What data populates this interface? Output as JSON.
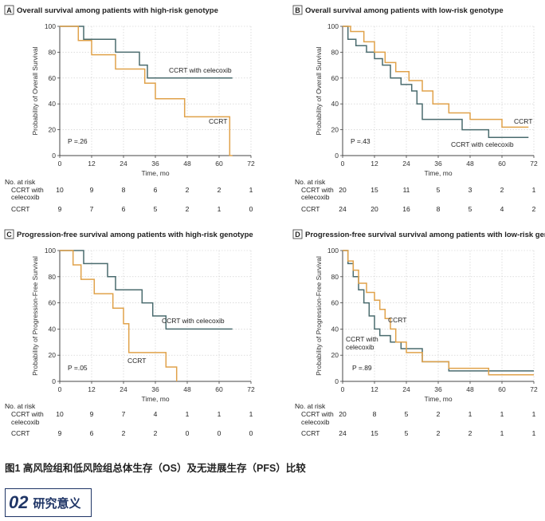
{
  "figure_caption": "图1 高风险组和低风险组总体生存（OS）及无进展生存（PFS）比较",
  "section": {
    "number": "02",
    "title": "研究意义"
  },
  "colors": {
    "celecoxib": "#4a6b6e",
    "ccrt": "#e0a24a",
    "axis": "#444444",
    "grid": "#c8c8c8"
  },
  "chart_data": [
    {
      "type": "line",
      "panel": "A",
      "title": "Overall survival among patients with high-risk genotype",
      "xlabel": "Time, mo",
      "ylabel": "Probability of Overall Survival",
      "xlim": [
        0,
        72
      ],
      "ylim": [
        0,
        100
      ],
      "xticks": [
        0,
        12,
        24,
        36,
        48,
        60,
        72
      ],
      "yticks": [
        0,
        20,
        40,
        60,
        80,
        100
      ],
      "p_value": "P =.26",
      "series": [
        {
          "name": "CCRT with celecoxib",
          "label": "CCRT with celecoxib",
          "color": "#4a6b6e",
          "x": [
            0,
            9,
            9,
            21,
            21,
            30,
            30,
            33,
            33,
            37,
            37,
            65
          ],
          "y": [
            100,
            100,
            90,
            90,
            80,
            80,
            70,
            70,
            60,
            60,
            60,
            60
          ]
        },
        {
          "name": "CCRT",
          "label": "CCRT",
          "color": "#e0a24a",
          "x": [
            0,
            7,
            7,
            12,
            12,
            21,
            21,
            32,
            32,
            36,
            36,
            41,
            41,
            47,
            47,
            56,
            56,
            64,
            64,
            65
          ],
          "y": [
            100,
            100,
            89,
            89,
            78,
            78,
            67,
            67,
            56,
            56,
            44,
            44,
            44,
            44,
            30,
            30,
            30,
            30,
            0,
            0
          ]
        }
      ],
      "risk_table": {
        "header": "No. at risk",
        "rows": [
          {
            "label": "CCRT with celecoxib",
            "values": [
              "10",
              "9",
              "8",
              "6",
              "2",
              "2",
              "1"
            ]
          },
          {
            "label": "CCRT",
            "values": [
              "9",
              "7",
              "6",
              "5",
              "2",
              "1",
              "0"
            ]
          }
        ]
      }
    },
    {
      "type": "line",
      "panel": "B",
      "title": "Overall survival among patients with low-risk genotype",
      "xlabel": "Time, mo",
      "ylabel": "Probability of Overall Survival",
      "xlim": [
        0,
        72
      ],
      "ylim": [
        0,
        100
      ],
      "xticks": [
        0,
        12,
        24,
        36,
        48,
        60,
        72
      ],
      "yticks": [
        0,
        20,
        40,
        60,
        80,
        100
      ],
      "p_value": "P =.43",
      "series": [
        {
          "name": "CCRT with celecoxib",
          "label": "CCRT with celecoxib",
          "color": "#4a6b6e",
          "x": [
            0,
            2,
            2,
            5,
            5,
            9,
            9,
            12,
            12,
            15,
            15,
            18,
            18,
            22,
            22,
            26,
            26,
            28,
            28,
            30,
            30,
            33,
            33,
            45,
            45,
            55,
            55,
            70
          ],
          "y": [
            100,
            100,
            90,
            90,
            85,
            85,
            80,
            80,
            75,
            75,
            70,
            70,
            60,
            60,
            55,
            55,
            50,
            50,
            40,
            40,
            28,
            28,
            28,
            28,
            20,
            20,
            14,
            14
          ]
        },
        {
          "name": "CCRT",
          "label": "CCRT",
          "color": "#e0a24a",
          "x": [
            0,
            3,
            3,
            8,
            8,
            12,
            12,
            16,
            16,
            20,
            20,
            25,
            25,
            30,
            30,
            34,
            34,
            40,
            40,
            48,
            48,
            60,
            60,
            70
          ],
          "y": [
            100,
            100,
            96,
            96,
            88,
            88,
            80,
            80,
            72,
            72,
            65,
            65,
            58,
            58,
            50,
            50,
            40,
            40,
            33,
            33,
            28,
            28,
            22,
            22
          ]
        }
      ],
      "risk_table": {
        "header": "No. at risk",
        "rows": [
          {
            "label": "CCRT with celecoxib",
            "values": [
              "20",
              "15",
              "11",
              "5",
              "3",
              "2",
              "1"
            ]
          },
          {
            "label": "CCRT",
            "values": [
              "24",
              "20",
              "16",
              "8",
              "5",
              "4",
              "2"
            ]
          }
        ]
      }
    },
    {
      "type": "line",
      "panel": "C",
      "title": "Progression-free survival among patients with high-risk genotype",
      "xlabel": "Time, mo",
      "ylabel": "Probability of Progression-Free Survival",
      "xlim": [
        0,
        72
      ],
      "ylim": [
        0,
        100
      ],
      "xticks": [
        0,
        12,
        24,
        36,
        48,
        60,
        72
      ],
      "yticks": [
        0,
        20,
        40,
        60,
        80,
        100
      ],
      "p_value": "P =.05",
      "series": [
        {
          "name": "CCRT with celecoxib",
          "label": "CCRT with celecoxib",
          "color": "#4a6b6e",
          "x": [
            0,
            9,
            9,
            18,
            18,
            21,
            21,
            31,
            31,
            35,
            35,
            40,
            40,
            65
          ],
          "y": [
            100,
            100,
            90,
            90,
            80,
            80,
            70,
            70,
            60,
            60,
            50,
            50,
            40,
            40
          ]
        },
        {
          "name": "CCRT",
          "label": "CCRT",
          "color": "#e0a24a",
          "x": [
            0,
            5,
            5,
            8,
            8,
            13,
            13,
            20,
            20,
            24,
            24,
            26,
            26,
            36,
            36,
            40,
            40,
            44,
            44
          ],
          "y": [
            100,
            100,
            89,
            89,
            78,
            78,
            67,
            67,
            56,
            56,
            44,
            44,
            22,
            22,
            22,
            22,
            11,
            11,
            0
          ]
        }
      ],
      "risk_table": {
        "header": "No. at risk",
        "rows": [
          {
            "label": "CCRT with celecoxib",
            "values": [
              "10",
              "9",
              "7",
              "4",
              "1",
              "1",
              "1"
            ]
          },
          {
            "label": "CCRT",
            "values": [
              "9",
              "6",
              "2",
              "2",
              "0",
              "0",
              "0"
            ]
          }
        ]
      }
    },
    {
      "type": "line",
      "panel": "D",
      "title": "Progression-free survival survival among patients with low-risk genotype",
      "xlabel": "Time, mo",
      "ylabel": "Probability of Progression-Free Survival",
      "xlim": [
        0,
        72
      ],
      "ylim": [
        0,
        100
      ],
      "xticks": [
        0,
        12,
        24,
        36,
        48,
        60,
        72
      ],
      "yticks": [
        0,
        20,
        40,
        60,
        80,
        100
      ],
      "p_value": "P =.89",
      "series": [
        {
          "name": "CCRT with celecoxib",
          "label": "CCRT with celecoxib",
          "color": "#4a6b6e",
          "x": [
            0,
            2,
            2,
            4,
            4,
            6,
            6,
            8,
            8,
            10,
            10,
            12,
            12,
            14,
            14,
            18,
            18,
            22,
            22,
            30,
            30,
            40,
            40,
            72
          ],
          "y": [
            100,
            100,
            90,
            90,
            80,
            80,
            70,
            70,
            60,
            60,
            50,
            50,
            40,
            40,
            35,
            35,
            30,
            30,
            25,
            25,
            15,
            15,
            8,
            8
          ]
        },
        {
          "name": "CCRT",
          "label": "CCRT",
          "color": "#e0a24a",
          "x": [
            0,
            2,
            2,
            4,
            4,
            6,
            6,
            9,
            9,
            12,
            12,
            14,
            14,
            16,
            16,
            18,
            18,
            20,
            20,
            24,
            24,
            30,
            30,
            40,
            40,
            55,
            55,
            72
          ],
          "y": [
            100,
            100,
            92,
            92,
            85,
            85,
            75,
            75,
            68,
            68,
            62,
            62,
            55,
            55,
            48,
            48,
            40,
            40,
            30,
            30,
            22,
            22,
            15,
            15,
            10,
            10,
            5,
            5
          ]
        }
      ],
      "risk_table": {
        "header": "No. at risk",
        "rows": [
          {
            "label": "CCRT with celecoxib",
            "values": [
              "20",
              "8",
              "5",
              "2",
              "1",
              "1",
              "1"
            ]
          },
          {
            "label": "CCRT",
            "values": [
              "24",
              "15",
              "5",
              "2",
              "2",
              "1",
              "1"
            ]
          }
        ]
      }
    }
  ]
}
